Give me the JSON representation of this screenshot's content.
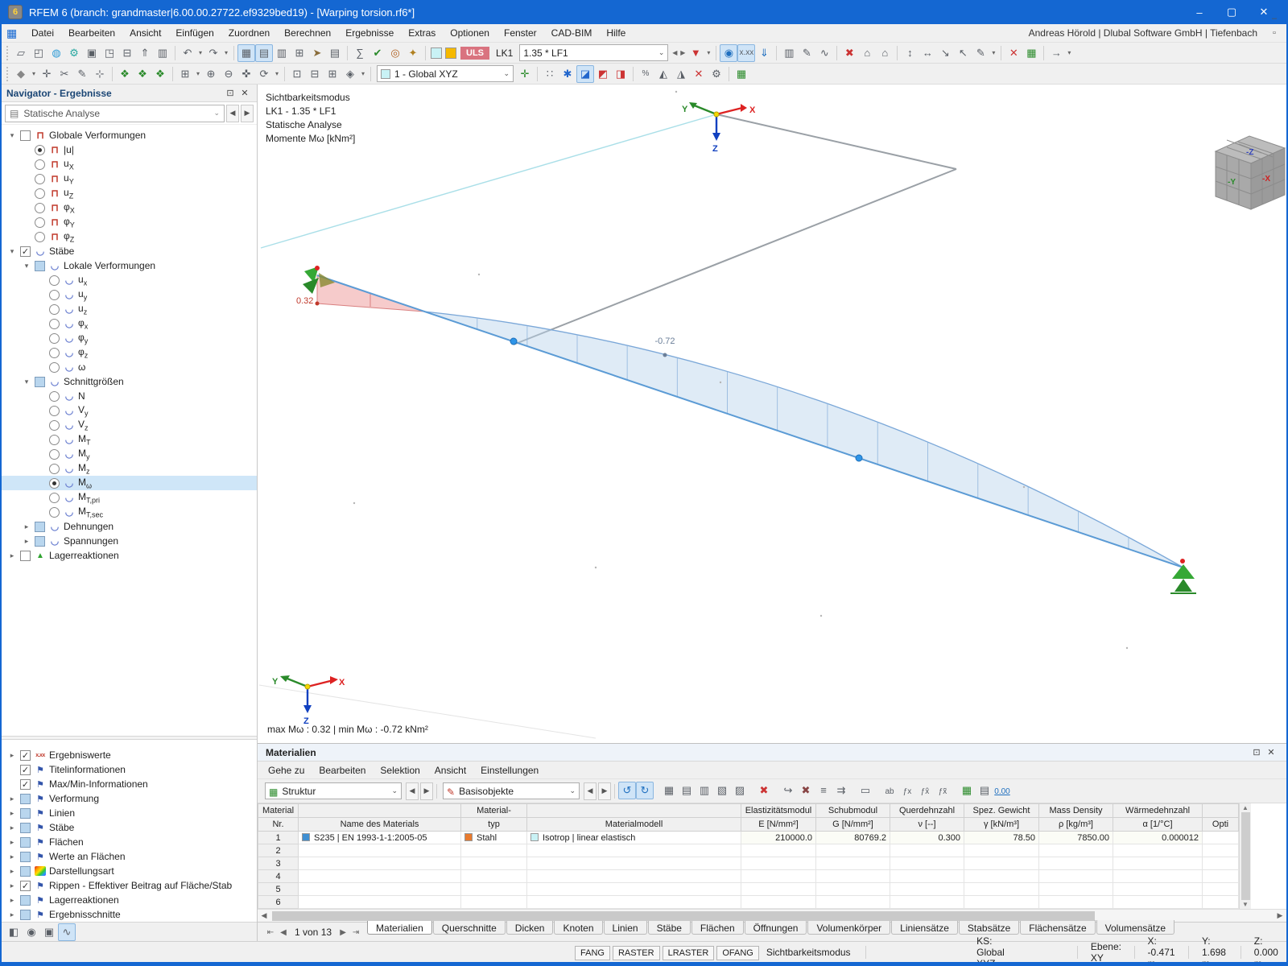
{
  "window": {
    "title": "RFEM 6 (branch: grandmaster|6.00.00.27722.ef9329bed19) - [Warping torsion.rf6*]",
    "app_badge": "6",
    "controls": {
      "minimize": "–",
      "maximize": "▢",
      "close": "✕"
    }
  },
  "menubar": {
    "items": [
      "Datei",
      "Bearbeiten",
      "Ansicht",
      "Einfügen",
      "Zuordnen",
      "Berechnen",
      "Ergebnisse",
      "Extras",
      "Optionen",
      "Fenster",
      "CAD-BIM",
      "Hilfe"
    ],
    "right_text": "Andreas Hörold | Dlubal Software GmbH | Tiefenbach",
    "mdi_controls": [
      "–",
      "▫",
      "✕"
    ]
  },
  "glyphs": {
    "expand_open": "▾",
    "expand_closed": "▸",
    "combo_arrow": "⌄",
    "left": "◀",
    "right": "▶",
    "up": "▲",
    "down": "▼",
    "float": "⊡",
    "close": "✕",
    "check": "✓",
    "frame": "⊓",
    "beam": "◡",
    "support": "▲",
    "values": "x.xx",
    "flag": "⚑",
    "analysis": "▤",
    "struktur": "▦",
    "basis": "✎",
    "pager_first": "⇤",
    "pager_prev": "◀",
    "pager_next": "▶",
    "pager_last": "⇥"
  },
  "toolbar1": [
    {
      "g": "▱",
      "n": "new-model"
    },
    {
      "g": "◰",
      "n": "open-model"
    },
    {
      "g": "◍",
      "n": "dlubal-center",
      "c": "#2e9bd6"
    },
    {
      "g": "⚙",
      "n": "settings",
      "c": "#27a7a0"
    },
    {
      "g": "▣",
      "n": "paste"
    },
    {
      "g": "◳",
      "n": "save"
    },
    {
      "g": "⊟",
      "n": "print"
    },
    {
      "g": "⇑",
      "n": "export"
    },
    {
      "g": "▥",
      "n": "copy"
    },
    {
      "sep": true
    },
    {
      "g": "↶",
      "n": "undo"
    },
    {
      "g": "▾",
      "n": "undo-dropdown",
      "dd": true
    },
    {
      "g": "↷",
      "n": "redo"
    },
    {
      "g": "▾",
      "n": "redo-dropdown",
      "dd": true
    },
    {
      "sep": true
    },
    {
      "g": "▦",
      "n": "show-navigator",
      "act": true
    },
    {
      "g": "▤",
      "n": "show-tables",
      "act": true
    },
    {
      "g": "▥",
      "n": "table-manager"
    },
    {
      "g": "⊞",
      "n": "new-table"
    },
    {
      "g": "➤",
      "n": "sections",
      "c": "#8a6d3b"
    },
    {
      "g": "▤",
      "n": "printout-report"
    },
    {
      "sep": true
    },
    {
      "g": "∑",
      "n": "calculate-all"
    },
    {
      "g": "✔",
      "n": "check-model",
      "c": "#2a8a2a"
    },
    {
      "g": "◎",
      "n": "loads",
      "c": "#b06020"
    },
    {
      "g": "✦",
      "n": "generate",
      "c": "#b08020"
    },
    {
      "sep": true
    },
    {
      "sw": "#c9f2f5",
      "n": "result-color-swatch-1"
    },
    {
      "sw": "#f5b900",
      "n": "result-color-swatch-2"
    },
    {
      "uls": true,
      "label": "ULS",
      "n": "design-situation-badge"
    },
    {
      "txt": "LK1",
      "n": "load-combination-label"
    },
    {
      "combo": "1.35 * LF1",
      "n": "load-case-combo",
      "w": "w185"
    },
    {
      "g": "◀",
      "n": "previous-load-case",
      "dd": true
    },
    {
      "g": "▶",
      "n": "next-load-case",
      "dd": true
    },
    {
      "g": "▼",
      "n": "filter-results",
      "c": "#c33"
    },
    {
      "g": "▾",
      "n": "filter-dropdown",
      "dd": true
    },
    {
      "sep": true
    },
    {
      "g": "◉",
      "n": "show-results",
      "act": true,
      "c": "#1f6fbf"
    },
    {
      "g": "x.xx",
      "n": "show-result-values",
      "act": true,
      "small": true
    },
    {
      "g": "⇓",
      "n": "results-on-deformed",
      "c": "#1f6fbf"
    },
    {
      "sep": true
    },
    {
      "g": "▥",
      "n": "result-table-columns"
    },
    {
      "g": "✎",
      "n": "edit-visibility"
    },
    {
      "g": "∿",
      "n": "result-diagrams"
    },
    {
      "sep": true
    },
    {
      "g": "✖",
      "n": "delete-results",
      "c": "#c33"
    },
    {
      "g": "⌂",
      "n": "model-view-1"
    },
    {
      "g": "⌂",
      "n": "model-view-2"
    },
    {
      "sep": true
    },
    {
      "g": "↕",
      "n": "stretch-vertical"
    },
    {
      "g": "↔",
      "n": "stretch-horizontal"
    },
    {
      "g": "↘",
      "n": "stretch-diagonal"
    },
    {
      "g": "↖",
      "n": "stretch-back"
    },
    {
      "g": "✎",
      "n": "edit-dimensions"
    },
    {
      "g": "▾",
      "n": "dimensions-dropdown",
      "dd": true
    },
    {
      "sep": true
    },
    {
      "g": "✕",
      "n": "delete",
      "c": "#c33"
    },
    {
      "g": "▦",
      "n": "tables-toggle",
      "c": "#2a8a2a"
    },
    {
      "sep": true
    },
    {
      "g": "→",
      "n": "more-tools"
    },
    {
      "g": "▾",
      "n": "toolbar-overflow",
      "dd": true
    }
  ],
  "toolbar2": [
    {
      "g": "◆",
      "n": "select-mode",
      "c": "#888"
    },
    {
      "g": "▾",
      "n": "select-dropdown",
      "dd": true
    },
    {
      "g": "✛",
      "n": "snap-settings"
    },
    {
      "g": "✂",
      "n": "trim-objects"
    },
    {
      "g": "✎",
      "n": "edit-objects"
    },
    {
      "g": "⊹",
      "n": "insert-node"
    },
    {
      "sep": true
    },
    {
      "g": "❖",
      "n": "visibility-objects",
      "c": "#2a8a2a"
    },
    {
      "g": "❖",
      "n": "visibility-numbering",
      "c": "#2a8a2a"
    },
    {
      "g": "❖",
      "n": "visibility-loads",
      "c": "#2a8a2a"
    },
    {
      "sep": true
    },
    {
      "g": "⊞",
      "n": "zoom-window"
    },
    {
      "g": "▾",
      "n": "zoom-dropdown",
      "dd": true
    },
    {
      "g": "⊕",
      "n": "zoom-in"
    },
    {
      "g": "⊖",
      "n": "zoom-out"
    },
    {
      "g": "✜",
      "n": "pan-view"
    },
    {
      "g": "⟳",
      "n": "rotate-view"
    },
    {
      "g": "▾",
      "n": "rotate-dropdown",
      "dd": true
    },
    {
      "sep": true
    },
    {
      "g": "⊡",
      "n": "view-front"
    },
    {
      "g": "⊟",
      "n": "view-top"
    },
    {
      "g": "⊞",
      "n": "view-side"
    },
    {
      "g": "◈",
      "n": "view-isometric"
    },
    {
      "g": "▾",
      "n": "view-dropdown",
      "dd": true
    },
    {
      "sep": true
    },
    {
      "combo": "1 - Global XYZ",
      "n": "coordinate-system-combo",
      "csw": "#c9f2f5",
      "w": "w170"
    },
    {
      "g": "✛",
      "n": "ucs-manager",
      "c": "#2a8a2a"
    },
    {
      "sep": true
    },
    {
      "g": "∷",
      "n": "grid-settings"
    },
    {
      "g": "✱",
      "n": "work-plane",
      "c": "#2266cc"
    },
    {
      "g": "◪",
      "n": "section-plane-xy",
      "act": true,
      "c": "#2266cc"
    },
    {
      "g": "◩",
      "n": "section-plane-xz",
      "c": "#c33"
    },
    {
      "g": "◨",
      "n": "section-plane-yz",
      "c": "#c33"
    },
    {
      "sep": true
    },
    {
      "g": "%",
      "n": "scale-results",
      "small": true
    },
    {
      "g": "◭",
      "n": "mirror-view"
    },
    {
      "g": "◮",
      "n": "flip-view"
    },
    {
      "g": "✕",
      "n": "delete-guide-objects",
      "c": "#c33"
    },
    {
      "g": "⚙",
      "n": "view-settings"
    },
    {
      "sep": true
    },
    {
      "g": "▦",
      "n": "table-toggle-right",
      "c": "#2a8a2a"
    }
  ],
  "navigator": {
    "title": "Navigator - Ergebnisse",
    "analysis_combo": "Statische Analyse",
    "tree": [
      {
        "arrow": "open",
        "c": "off",
        "icon": "frame",
        "t": "Globale Verformungen",
        "lvl": 0
      },
      {
        "r": "on",
        "icon": "frame",
        "t": "|u|",
        "lvl": 1
      },
      {
        "r": "off",
        "icon": "frame",
        "t": "u",
        "s": "X",
        "lvl": 1
      },
      {
        "r": "off",
        "icon": "frame",
        "t": "u",
        "s": "Y",
        "lvl": 1
      },
      {
        "r": "off",
        "icon": "frame",
        "t": "u",
        "s": "Z",
        "lvl": 1
      },
      {
        "r": "off",
        "icon": "frame",
        "t": "φ",
        "s": "X",
        "lvl": 1
      },
      {
        "r": "off",
        "icon": "frame",
        "t": "φ",
        "s": "Y",
        "lvl": 1
      },
      {
        "r": "off",
        "icon": "frame",
        "t": "φ",
        "s": "Z",
        "lvl": 1
      },
      {
        "arrow": "open",
        "c": "on",
        "icon": "beam",
        "t": "Stäbe",
        "lvl": 0
      },
      {
        "arrow": "open",
        "c": "partial",
        "icon": "beam",
        "t": "Lokale Verformungen",
        "lvl": 1
      },
      {
        "r": "off",
        "icon": "beam",
        "t": "u",
        "s": "x",
        "lvl": 2
      },
      {
        "r": "off",
        "icon": "beam",
        "t": "u",
        "s": "y",
        "lvl": 2
      },
      {
        "r": "off",
        "icon": "beam",
        "t": "u",
        "s": "z",
        "lvl": 2
      },
      {
        "r": "off",
        "icon": "beam",
        "t": "φ",
        "s": "x",
        "lvl": 2
      },
      {
        "r": "off",
        "icon": "beam",
        "t": "φ",
        "s": "y",
        "lvl": 2
      },
      {
        "r": "off",
        "icon": "beam",
        "t": "φ",
        "s": "z",
        "lvl": 2
      },
      {
        "r": "off",
        "icon": "beam",
        "t": "ω",
        "lvl": 2
      },
      {
        "arrow": "open",
        "c": "partial",
        "icon": "beam",
        "t": "Schnittgrößen",
        "lvl": 1
      },
      {
        "r": "off",
        "icon": "beam",
        "t": "N",
        "lvl": 2
      },
      {
        "r": "off",
        "icon": "beam",
        "t": "V",
        "s": "y",
        "lvl": 2
      },
      {
        "r": "off",
        "icon": "beam",
        "t": "V",
        "s": "z",
        "lvl": 2
      },
      {
        "r": "off",
        "icon": "beam",
        "t": "M",
        "s": "T",
        "lvl": 2
      },
      {
        "r": "off",
        "icon": "beam",
        "t": "M",
        "s": "y",
        "lvl": 2
      },
      {
        "r": "off",
        "icon": "beam",
        "t": "M",
        "s": "z",
        "lvl": 2
      },
      {
        "r": "on",
        "icon": "beam",
        "t": "M",
        "s": "ω",
        "lvl": 2,
        "sel": true
      },
      {
        "r": "off",
        "icon": "beam",
        "t": "M",
        "s": "T,pri",
        "lvl": 2
      },
      {
        "r": "off",
        "icon": "beam",
        "t": "M",
        "s": "T,sec",
        "lvl": 2
      },
      {
        "arrow": "closed",
        "c": "partial",
        "icon": "beam",
        "t": "Dehnungen",
        "lvl": 1
      },
      {
        "arrow": "closed",
        "c": "partial",
        "icon": "beam",
        "t": "Spannungen",
        "lvl": 1
      },
      {
        "arrow": "closed",
        "c": "off",
        "icon": "support",
        "t": "Lagerreaktionen",
        "lvl": 0
      }
    ],
    "lower_tree": [
      {
        "arrow": "closed",
        "c": "on",
        "icon": "values",
        "t": "Ergebniswerte",
        "lvl": 0
      },
      {
        "c": "on",
        "icon": "flag",
        "t": "Titelinformationen",
        "lvl": 0
      },
      {
        "c": "on",
        "icon": "flag",
        "t": "Max/Min-Informationen",
        "lvl": 0
      },
      {
        "arrow": "closed",
        "c": "partial",
        "icon": "flag",
        "t": "Verformung",
        "lvl": 0
      },
      {
        "arrow": "closed",
        "c": "partial",
        "icon": "flag",
        "t": "Linien",
        "lvl": 0
      },
      {
        "arrow": "closed",
        "c": "partial",
        "icon": "flag",
        "t": "Stäbe",
        "lvl": 0
      },
      {
        "arrow": "closed",
        "c": "partial",
        "icon": "flag",
        "t": "Flächen",
        "lvl": 0
      },
      {
        "arrow": "closed",
        "c": "partial",
        "icon": "flag",
        "t": "Werte an Flächen",
        "lvl": 0
      },
      {
        "arrow": "closed",
        "c": "partial",
        "icon": "rainbow",
        "t": "Darstellungsart",
        "lvl": 0
      },
      {
        "arrow": "closed",
        "c": "on",
        "icon": "flag",
        "t": "Rippen - Effektiver Beitrag auf Fläche/Stab",
        "lvl": 0
      },
      {
        "arrow": "closed",
        "c": "partial",
        "icon": "flag",
        "t": "Lagerreaktionen",
        "lvl": 0
      },
      {
        "arrow": "closed",
        "c": "partial",
        "icon": "flag",
        "t": "Ergebnisschnitte",
        "lvl": 0
      }
    ],
    "bottom_icons": [
      {
        "g": "◧",
        "n": "panel-display"
      },
      {
        "g": "◉",
        "n": "visibility-eye"
      },
      {
        "g": "▣",
        "n": "camera"
      },
      {
        "g": "∿",
        "n": "result-diagram",
        "act": true
      }
    ]
  },
  "viewport": {
    "info_lines": [
      "Sichtbarkeitsmodus",
      "LK1 - 1.35 * LF1",
      "Statische Analyse",
      "Momente Mω [kNm²]"
    ],
    "maxmin": "max Mω : 0.32 | min Mω : -0.72 kNm²",
    "labels": {
      "max_value": "0.32",
      "min_value": "-0.72"
    },
    "axes": {
      "x": "X",
      "y": "Y",
      "z": "Z"
    },
    "cube": {
      "top": "-Z",
      "left": "-Y",
      "right": "-X"
    }
  },
  "materials": {
    "title": "Materialien",
    "menu": [
      "Gehe zu",
      "Bearbeiten",
      "Selektion",
      "Ansicht",
      "Einstellungen"
    ],
    "combo1": "Struktur",
    "combo2": "Basisobjekte",
    "toolbar": [
      {
        "g": "↺",
        "n": "sync-selection",
        "act": true,
        "c": "#1f6fbf"
      },
      {
        "g": "↻",
        "n": "sync-table",
        "act": true,
        "c": "#1f6fbf"
      },
      {
        "sep": true
      },
      {
        "g": "▦",
        "n": "table-view"
      },
      {
        "g": "▤",
        "n": "row-view"
      },
      {
        "g": "▥",
        "n": "column-filter"
      },
      {
        "g": "▧",
        "n": "used-rows-filter"
      },
      {
        "g": "▨",
        "n": "all-rows-filter"
      },
      {
        "sep": true
      },
      {
        "g": "✖",
        "n": "delete-row",
        "c": "#c33"
      },
      {
        "sep": true
      },
      {
        "g": "↪",
        "n": "import-material"
      },
      {
        "g": "✖",
        "n": "clear-table",
        "c": "#884444"
      },
      {
        "g": "≡",
        "n": "align-rows"
      },
      {
        "g": "⇉",
        "n": "transfer-values"
      },
      {
        "sep": true
      },
      {
        "g": "▭",
        "n": "new-window"
      },
      {
        "sep": true
      },
      {
        "g": "ab",
        "n": "rename-cell",
        "small": true
      },
      {
        "g": "ƒx",
        "n": "formula",
        "small": true
      },
      {
        "g": "ƒx̂",
        "n": "formula-edit",
        "small": true
      },
      {
        "g": "ƒx̃",
        "n": "formula-manager",
        "small": true
      },
      {
        "sep": true
      },
      {
        "g": "▦",
        "n": "calculator",
        "c": "#2a8a2a"
      },
      {
        "g": "▤",
        "n": "table-settings"
      },
      {
        "g": "0.00",
        "n": "decimal-places",
        "small": true,
        "u": true
      }
    ],
    "table": {
      "columns": [
        {
          "l1": "Material",
          "l2": "Nr."
        },
        {
          "l1": "",
          "l2": "Name des Materials"
        },
        {
          "l1": "Material-",
          "l2": "typ"
        },
        {
          "l1": "",
          "l2": "Materialmodell"
        },
        {
          "l1": "Elastizitätsmodul",
          "l2": "E [N/mm²]"
        },
        {
          "l1": "Schubmodul",
          "l2": "G [N/mm²]"
        },
        {
          "l1": "Querdehnzahl",
          "l2": "ν [--]"
        },
        {
          "l1": "Spez. Gewicht",
          "l2": "γ [kN/m³]"
        },
        {
          "l1": "Mass Density",
          "l2": "ρ [kg/m³]"
        },
        {
          "l1": "Wärmedehnzahl",
          "l2": "α [1/°C]"
        },
        {
          "l1": "",
          "l2": "Opti"
        }
      ],
      "rows": [
        {
          "nr": "1",
          "name": {
            "swatch": "#3f8fd2",
            "text": "S235 | EN 1993-1-1:2005-05"
          },
          "typ": {
            "swatch": "#e87a2e",
            "text": "Stahl"
          },
          "modell": {
            "swatch": "#c9f2f5",
            "text": "Isotrop | linear elastisch"
          },
          "e": "210000.0",
          "g": "80769.2",
          "nu": "0.300",
          "gamma": "78.50",
          "rho": "7850.00",
          "alpha": "0.000012",
          "opt": ""
        },
        {
          "nr": "2"
        },
        {
          "nr": "3"
        },
        {
          "nr": "4"
        },
        {
          "nr": "5"
        },
        {
          "nr": "6"
        }
      ]
    },
    "pager": "1 von 13",
    "tabs": [
      "Materialien",
      "Querschnitte",
      "Dicken",
      "Knoten",
      "Linien",
      "Stäbe",
      "Flächen",
      "Öffnungen",
      "Volumenkörper",
      "Liniensätze",
      "Stabsätze",
      "Flächensätze",
      "Volumensätze"
    ],
    "active_tab": "Materialien"
  },
  "statusbar": {
    "toggles": [
      "FANG",
      "RASTER",
      "LRASTER",
      "OFANG"
    ],
    "mode": "Sichtbarkeitsmodus",
    "ks": "KS: Global XYZ",
    "plane": "Ebene: XY",
    "x": "X: -0.471 m",
    "y": "Y: 1.698 m",
    "z": "Z: 0.000 m"
  }
}
